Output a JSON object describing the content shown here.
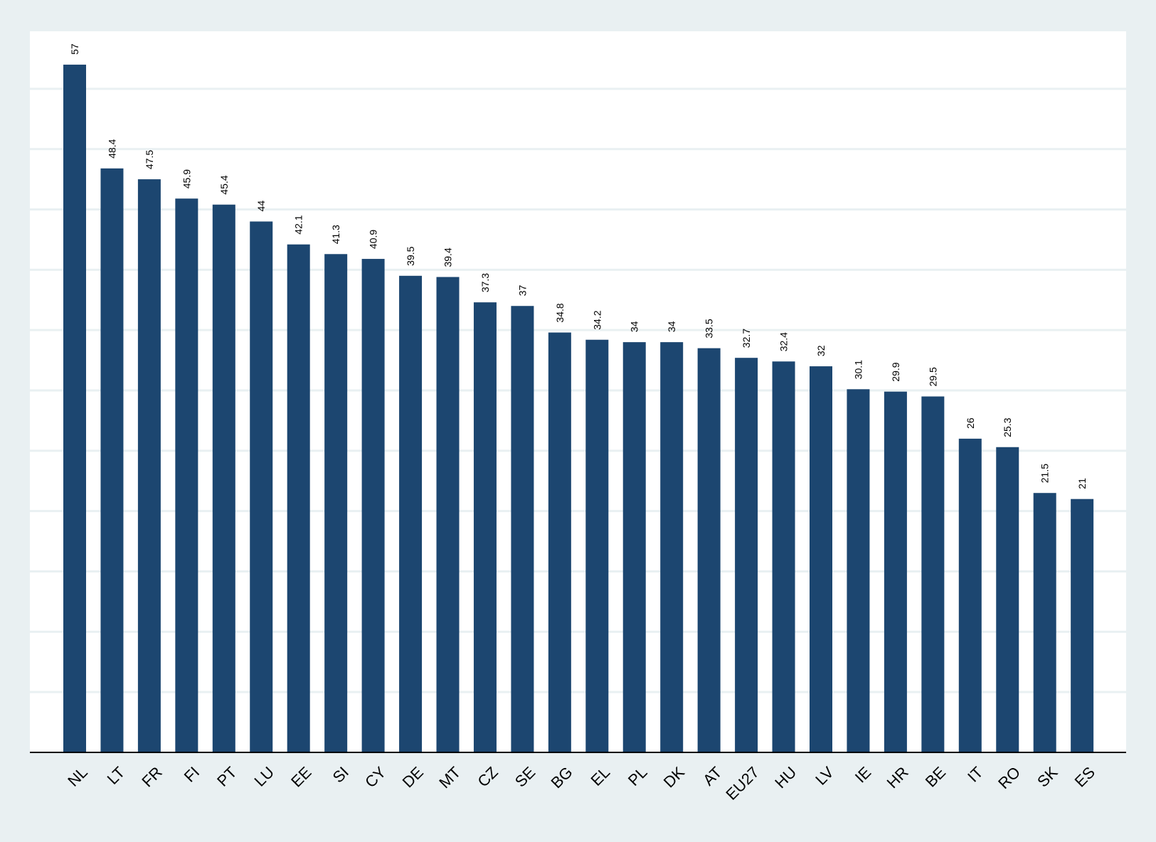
{
  "chart_data": {
    "type": "bar",
    "categories": [
      "NL",
      "LT",
      "FR",
      "FI",
      "PT",
      "LU",
      "EE",
      "SI",
      "CY",
      "DE",
      "MT",
      "CZ",
      "SE",
      "BG",
      "EL",
      "PL",
      "DK",
      "AT",
      "EU27",
      "HU",
      "LV",
      "IE",
      "HR",
      "BE",
      "IT",
      "RO",
      "SK",
      "ES"
    ],
    "values": [
      57,
      48.4,
      47.5,
      45.9,
      45.4,
      44,
      42.1,
      41.3,
      40.9,
      39.5,
      39.4,
      37.3,
      37,
      34.8,
      34.2,
      34,
      34,
      33.5,
      32.7,
      32.4,
      32,
      30.1,
      29.9,
      29.5,
      26,
      25.3,
      21.5,
      21
    ],
    "data_labels": [
      "57",
      "48.4",
      "47.5",
      "45.9",
      "45.4",
      "44",
      "42.1",
      "41.3",
      "40.9",
      "39.5",
      "39.4",
      "37.3",
      "37",
      "34.8",
      "34.2",
      "34",
      "34",
      "33.5",
      "32.7",
      "32.4",
      "32",
      "30.1",
      "29.9",
      "29.5",
      "26",
      "25.3",
      "21.5",
      "21"
    ],
    "title": "",
    "xlabel": "",
    "ylabel": "",
    "ylim": [
      0,
      60
    ],
    "ytick_step": 5,
    "ytick_labels_shown": false,
    "grid": true,
    "legend": "none",
    "colors": {
      "bar": "#1c4670",
      "background": "#e9f0f2",
      "plot_background": "#ffffff",
      "grid": "#e9f0f2",
      "axis": "#000000"
    }
  }
}
